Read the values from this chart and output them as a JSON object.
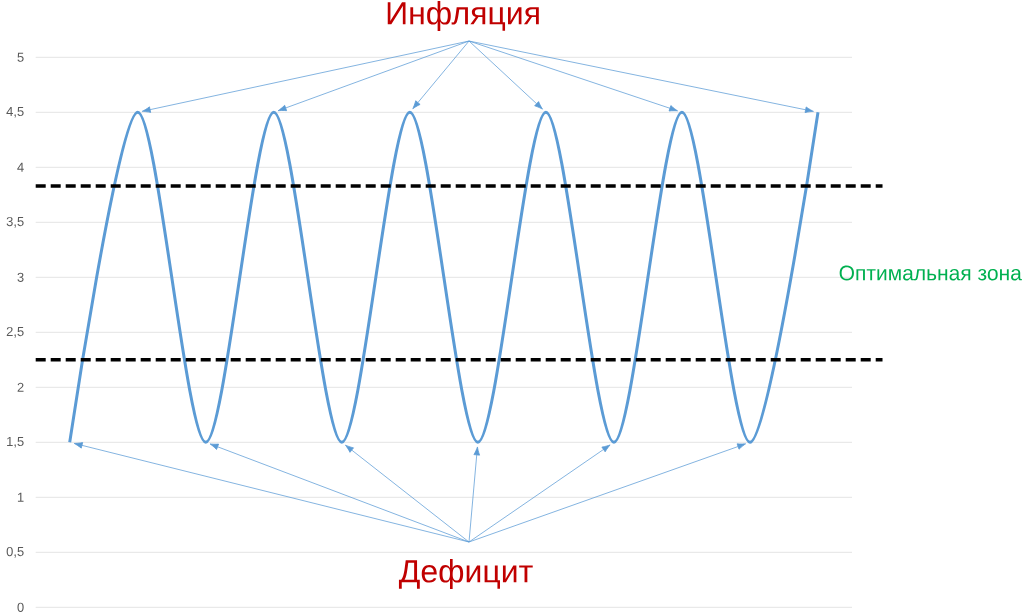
{
  "chart_data": {
    "type": "line",
    "categories": [
      null,
      null,
      null,
      null,
      null,
      null,
      null,
      null,
      null,
      null,
      null,
      null
    ],
    "values": [
      1.5,
      4.5,
      1.5,
      4.5,
      1.5,
      4.5,
      1.5,
      4.5,
      1.5,
      4.5,
      1.5,
      4.5
    ],
    "color": "#5b9bd5",
    "ylim": [
      0,
      5
    ],
    "yticks": [
      0,
      {
        "value": 0.5,
        "label": "0,5"
      },
      1,
      {
        "value": 1.5,
        "label": "1,5"
      },
      2,
      {
        "value": 2.5,
        "label": "2,5"
      },
      3,
      {
        "value": 3.5,
        "label": "3,5"
      },
      4,
      {
        "value": 4.5,
        "label": "4,5"
      },
      5
    ],
    "grid": "y",
    "ref_lines": [
      {
        "axis": "y",
        "value": 3.83,
        "color": "#000000",
        "line_style": "dashed"
      },
      {
        "axis": "y",
        "value": 2.25,
        "color": "#000000",
        "line_style": "dashed"
      }
    ],
    "annotations": [
      "Инфляция",
      "Оптимальная зона",
      "Дефицит"
    ]
  }
}
